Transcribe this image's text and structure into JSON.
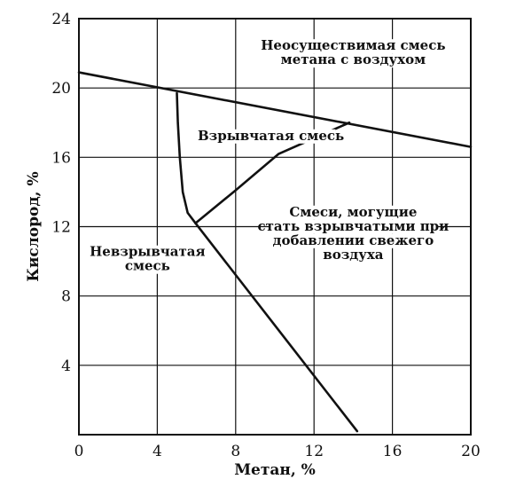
{
  "chart_data": {
    "type": "line",
    "title": "",
    "xlabel": "Метан, %",
    "ylabel": "Кислород, %",
    "xlim": [
      0,
      20
    ],
    "ylim": [
      0,
      24
    ],
    "x_ticks": [
      0,
      4,
      8,
      12,
      16,
      20
    ],
    "y_ticks": [
      4,
      8,
      12,
      16,
      20,
      24
    ],
    "grid": true,
    "series": [
      {
        "points": [
          [
            0,
            20.9
          ],
          [
            20,
            16.6
          ]
        ]
      },
      {
        "points": [
          [
            5.0,
            19.7
          ],
          [
            5.05,
            18.0
          ],
          [
            5.15,
            16.0
          ],
          [
            5.3,
            14.0
          ],
          [
            5.55,
            12.8
          ],
          [
            5.95,
            12.2
          ]
        ]
      },
      {
        "points": [
          [
            5.95,
            12.2
          ],
          [
            8,
            14.1
          ],
          [
            10.2,
            16.2
          ],
          [
            13.8,
            18.0
          ]
        ]
      },
      {
        "points": [
          [
            5.95,
            12.2
          ],
          [
            14.2,
            0.2
          ]
        ]
      }
    ],
    "annotations": [
      {
        "lines": [
          "Неосуществимая смесь",
          "метана с воздухом"
        ],
        "x": 14.0,
        "y": 22.2
      },
      {
        "lines": [
          "Взрывчатая смесь"
        ],
        "x": 9.8,
        "y": 17.0
      },
      {
        "lines": [
          "Смеси, могущие",
          "стать взрывчатыми при",
          "добавлении свежего",
          "воздуха"
        ],
        "x": 14.0,
        "y": 12.6
      },
      {
        "lines": [
          "Невзрывчатая",
          "смесь"
        ],
        "x": 3.5,
        "y": 10.3
      }
    ]
  }
}
